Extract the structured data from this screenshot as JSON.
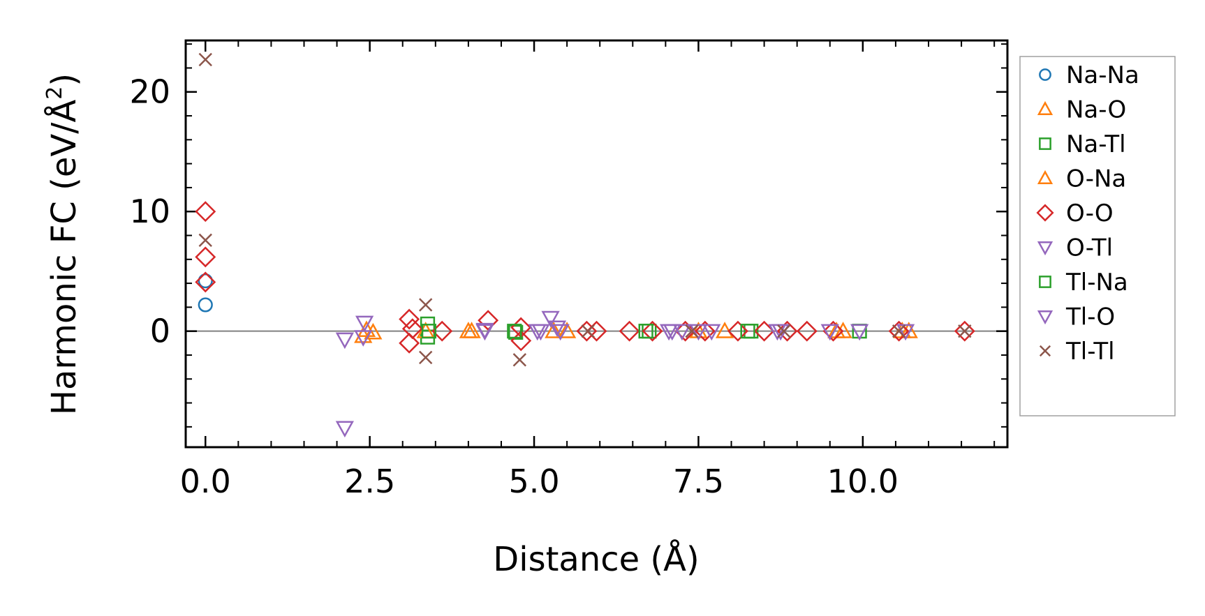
{
  "chart_data": {
    "type": "scatter",
    "xlabel": "Distance (Å)",
    "ylabel_main": "Harmonic FC (eV/Å",
    "ylabel_sup": "2",
    "ylabel_close": ")",
    "xlim": [
      -0.3,
      12.2
    ],
    "ylim": [
      -9.7,
      24.3
    ],
    "xticks": [
      {
        "value": 0.0,
        "label": "0.0"
      },
      {
        "value": 2.5,
        "label": "2.5"
      },
      {
        "value": 5.0,
        "label": "5.0"
      },
      {
        "value": 7.5,
        "label": "7.5"
      },
      {
        "value": 10.0,
        "label": "10.0"
      }
    ],
    "yticks": [
      {
        "value": 0,
        "label": "0"
      },
      {
        "value": 10,
        "label": "10"
      },
      {
        "value": 20,
        "label": "20"
      }
    ],
    "reference_line_y": 0,
    "legend_position": "outside-right",
    "series": [
      {
        "name": "Na-Na",
        "marker": "circle",
        "color": "#1f77b4",
        "points": [
          [
            0.0,
            2.2
          ],
          [
            0.0,
            4.2
          ]
        ]
      },
      {
        "name": "Na-O",
        "marker": "triangle-up",
        "color": "#ff7f0e",
        "points": [
          [
            2.4,
            -0.4
          ],
          [
            2.55,
            -0.1
          ],
          [
            4.0,
            0.0
          ],
          [
            5.5,
            0.0
          ],
          [
            7.9,
            0.0
          ],
          [
            9.6,
            0.0
          ],
          [
            10.7,
            0.0
          ]
        ]
      },
      {
        "name": "Na-Tl",
        "marker": "square",
        "color": "#2ca02c",
        "points": [
          [
            3.38,
            0.6
          ],
          [
            3.38,
            -0.5
          ],
          [
            4.72,
            -0.1
          ],
          [
            6.75,
            0.0
          ],
          [
            8.3,
            0.0
          ],
          [
            9.95,
            0.0
          ]
        ]
      },
      {
        "name": "O-Na",
        "marker": "triangle-up",
        "color": "#ff7f0e",
        "points": [
          [
            2.45,
            0.1
          ],
          [
            3.35,
            0.0
          ],
          [
            4.05,
            0.0
          ],
          [
            5.3,
            0.0
          ],
          [
            7.5,
            0.0
          ],
          [
            9.7,
            0.0
          ],
          [
            10.6,
            0.0
          ]
        ]
      },
      {
        "name": "O-O",
        "marker": "diamond",
        "color": "#d62728",
        "points": [
          [
            0.0,
            10.0
          ],
          [
            0.0,
            6.2
          ],
          [
            0.0,
            4.1
          ],
          [
            3.1,
            1.0
          ],
          [
            3.1,
            -1.0
          ],
          [
            3.15,
            0.2
          ],
          [
            3.6,
            0.0
          ],
          [
            4.3,
            0.9
          ],
          [
            4.8,
            0.3
          ],
          [
            4.8,
            -0.8
          ],
          [
            5.8,
            0.0
          ],
          [
            5.95,
            0.0
          ],
          [
            6.45,
            0.0
          ],
          [
            6.8,
            0.0
          ],
          [
            7.3,
            0.0
          ],
          [
            7.6,
            0.0
          ],
          [
            8.1,
            0.0
          ],
          [
            8.5,
            0.0
          ],
          [
            8.85,
            0.0
          ],
          [
            9.15,
            0.0
          ],
          [
            9.55,
            0.0
          ],
          [
            10.55,
            0.0
          ],
          [
            11.55,
            0.0
          ]
        ]
      },
      {
        "name": "O-Tl",
        "marker": "triangle-down",
        "color": "#9467bd",
        "points": [
          [
            2.42,
            0.7
          ],
          [
            4.25,
            0.1
          ],
          [
            5.05,
            0.0
          ],
          [
            5.25,
            1.1
          ],
          [
            5.35,
            0.3
          ],
          [
            7.05,
            0.0
          ],
          [
            7.25,
            0.0
          ],
          [
            7.7,
            0.0
          ],
          [
            8.7,
            0.0
          ],
          [
            9.95,
            0.0
          ],
          [
            10.65,
            0.0
          ]
        ]
      },
      {
        "name": "Tl-Na",
        "marker": "square",
        "color": "#2ca02c",
        "points": [
          [
            3.4,
            0.0
          ],
          [
            4.7,
            0.0
          ],
          [
            6.7,
            0.0
          ],
          [
            8.25,
            0.0
          ]
        ]
      },
      {
        "name": "Tl-O",
        "marker": "triangle-down",
        "color": "#9467bd",
        "points": [
          [
            2.12,
            -8.1
          ],
          [
            2.12,
            -0.7
          ],
          [
            2.4,
            -0.5
          ],
          [
            4.25,
            0.0
          ],
          [
            5.1,
            0.0
          ],
          [
            5.4,
            0.0
          ],
          [
            7.1,
            0.0
          ],
          [
            7.5,
            0.0
          ],
          [
            8.75,
            0.0
          ],
          [
            9.5,
            0.0
          ]
        ]
      },
      {
        "name": "Tl-Tl",
        "marker": "cross",
        "color": "#8c564b",
        "points": [
          [
            0.0,
            22.7
          ],
          [
            0.0,
            7.6
          ],
          [
            3.35,
            2.2
          ],
          [
            3.35,
            -2.2
          ],
          [
            4.78,
            -2.4
          ],
          [
            5.82,
            0.0
          ],
          [
            7.4,
            0.0
          ],
          [
            8.8,
            0.0
          ],
          [
            10.55,
            0.0
          ],
          [
            11.55,
            0.0
          ]
        ]
      }
    ]
  }
}
